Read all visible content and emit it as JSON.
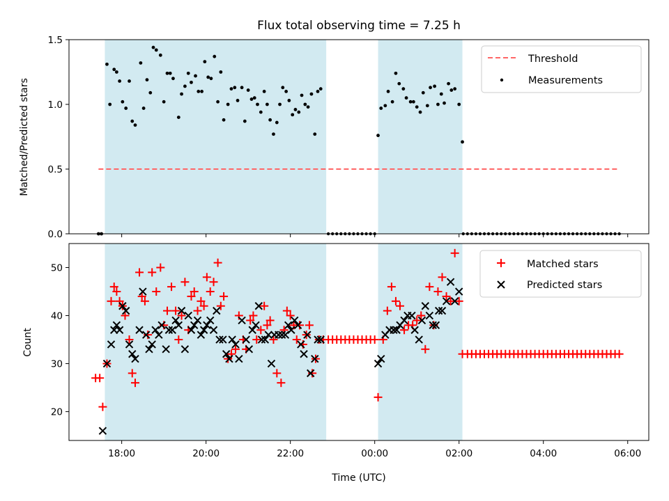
{
  "chart_data": [
    {
      "type": "scatter",
      "title": "Flux total observing time = 7.25 h",
      "ylabel": "Matched/Predicted stars",
      "xlabel": "",
      "ylim": [
        0,
        1.5
      ],
      "yticks": [
        0.0,
        0.5,
        1.0,
        1.5
      ],
      "ytick_labels": [
        "0.0",
        "0.5",
        "1.0",
        "1.5"
      ],
      "xlim_hours": [
        16.75,
        30.5
      ],
      "threshold": {
        "label": "Threshold",
        "value": 0.5,
        "x_start": 17.45,
        "x_end": 29.8,
        "color": "#ff6666"
      },
      "shaded_intervals": [
        [
          17.6,
          22.85
        ],
        [
          24.08,
          26.08
        ]
      ],
      "shade_color": "#add8e6",
      "legend": [
        "Threshold",
        "Measurements"
      ],
      "series": [
        {
          "name": "Measurements",
          "color": "#000000",
          "x": [
            17.45,
            17.52,
            17.65,
            17.72,
            17.82,
            17.88,
            17.95,
            18.02,
            18.1,
            18.18,
            18.25,
            18.32,
            18.45,
            18.52,
            18.6,
            18.68,
            18.75,
            18.82,
            18.92,
            19.0,
            19.08,
            19.15,
            19.22,
            19.35,
            19.42,
            19.5,
            19.58,
            19.65,
            19.75,
            19.82,
            19.9,
            19.97,
            20.05,
            20.12,
            20.2,
            20.28,
            20.35,
            20.42,
            20.52,
            20.6,
            20.68,
            20.75,
            20.85,
            20.92,
            21.0,
            21.08,
            21.15,
            21.22,
            21.3,
            21.38,
            21.45,
            21.52,
            21.6,
            21.68,
            21.75,
            21.82,
            21.9,
            21.97,
            22.05,
            22.12,
            22.2,
            22.27,
            22.35,
            22.42,
            22.5,
            22.58,
            22.65,
            22.72,
            24.08,
            24.15,
            24.25,
            24.32,
            24.42,
            24.5,
            24.58,
            24.68,
            24.75,
            24.85,
            24.92,
            25.0,
            25.08,
            25.15,
            25.25,
            25.32,
            25.42,
            25.5,
            25.58,
            25.65,
            25.75,
            25.82,
            25.9,
            26.0,
            26.08
          ],
          "y": [
            0.0,
            0.0,
            1.31,
            1.0,
            1.27,
            1.25,
            1.18,
            1.02,
            0.97,
            1.18,
            0.87,
            0.84,
            1.32,
            0.97,
            1.19,
            1.09,
            1.44,
            1.42,
            1.38,
            1.02,
            1.24,
            1.24,
            1.2,
            0.9,
            1.08,
            1.14,
            1.24,
            1.17,
            1.22,
            1.1,
            1.1,
            1.33,
            1.21,
            1.2,
            1.37,
            1.02,
            1.25,
            0.88,
            1.0,
            1.12,
            1.13,
            1.03,
            1.13,
            0.87,
            1.11,
            1.04,
            1.05,
            1.0,
            0.94,
            1.1,
            1.0,
            0.88,
            0.77,
            0.86,
            1.0,
            1.13,
            1.1,
            1.03,
            0.92,
            0.96,
            0.94,
            1.07,
            1.0,
            0.98,
            1.08,
            0.77,
            1.1,
            1.12,
            0.76,
            0.97,
            0.99,
            1.1,
            1.02,
            1.24,
            1.16,
            1.12,
            1.05,
            1.02,
            1.02,
            0.98,
            0.94,
            1.09,
            0.99,
            1.13,
            1.14,
            1.0,
            1.08,
            1.01,
            1.16,
            1.11,
            1.12,
            1.0,
            0.71
          ],
          "x_zero": [
            22.9,
            23.0,
            23.1,
            23.2,
            23.3,
            23.4,
            23.5,
            23.6,
            23.7,
            23.8,
            23.9,
            24.0,
            26.1,
            26.2,
            26.3,
            26.4,
            26.5,
            26.6,
            26.7,
            26.8,
            26.9,
            27.0,
            27.1,
            27.2,
            27.3,
            27.4,
            27.5,
            27.6,
            27.7,
            27.8,
            27.9,
            28.0,
            28.1,
            28.2,
            28.3,
            28.4,
            28.5,
            28.6,
            28.7,
            28.8,
            28.9,
            29.0,
            29.1,
            29.2,
            29.3,
            29.4,
            29.5,
            29.6,
            29.7,
            29.8
          ]
        }
      ]
    },
    {
      "type": "scatter",
      "title": "",
      "ylabel": "Count",
      "xlabel": "Time (UTC)",
      "ylim": [
        14,
        55
      ],
      "yticks": [
        20,
        30,
        40,
        50
      ],
      "ytick_labels": [
        "20",
        "30",
        "40",
        "50"
      ],
      "xlim_hours": [
        16.75,
        30.5
      ],
      "xticks_hours": [
        18,
        20,
        22,
        24,
        26,
        28,
        30
      ],
      "xtick_labels": [
        "18:00",
        "20:00",
        "22:00",
        "00:00",
        "02:00",
        "04:00",
        "06:00"
      ],
      "shaded_intervals": [
        [
          17.6,
          22.85
        ],
        [
          24.08,
          26.08
        ]
      ],
      "shade_color": "#add8e6",
      "legend": [
        "Matched stars",
        "Predicted stars"
      ],
      "series": [
        {
          "name": "Matched stars",
          "color": "#ff0000",
          "marker": "+",
          "x": [
            17.38,
            17.48,
            17.55,
            17.65,
            17.75,
            17.82,
            17.88,
            17.95,
            18.02,
            18.08,
            18.18,
            18.25,
            18.32,
            18.42,
            18.48,
            18.55,
            18.62,
            18.72,
            18.82,
            18.92,
            19.0,
            19.08,
            19.18,
            19.28,
            19.35,
            19.42,
            19.5,
            19.58,
            19.65,
            19.72,
            19.8,
            19.88,
            19.95,
            20.02,
            20.1,
            20.18,
            20.28,
            20.35,
            20.42,
            20.52,
            20.6,
            20.7,
            20.78,
            20.88,
            20.95,
            21.05,
            21.12,
            21.2,
            21.3,
            21.38,
            21.45,
            21.52,
            21.6,
            21.68,
            21.78,
            21.85,
            21.92,
            22.0,
            22.08,
            22.15,
            22.22,
            22.3,
            22.38,
            22.45,
            22.52,
            22.6,
            22.68,
            22.78,
            22.9,
            23.0,
            23.1,
            23.2,
            23.3,
            23.4,
            23.5,
            23.6,
            23.7,
            23.8,
            23.9,
            24.0,
            24.08,
            24.2,
            24.3,
            24.4,
            24.5,
            24.6,
            24.7,
            24.8,
            24.9,
            25.0,
            25.1,
            25.2,
            25.3,
            25.4,
            25.5,
            25.6,
            25.7,
            25.8,
            25.9,
            26.0,
            26.08,
            26.2,
            26.3,
            26.4,
            26.5,
            26.6,
            26.7,
            26.8,
            26.9,
            27.0,
            27.1,
            27.2,
            27.3,
            27.4,
            27.5,
            27.6,
            27.7,
            27.8,
            27.9,
            28.0,
            28.1,
            28.2,
            28.3,
            28.4,
            28.5,
            28.6,
            28.7,
            28.8,
            28.9,
            29.0,
            29.1,
            29.2,
            29.3,
            29.4,
            29.5,
            29.6,
            29.7,
            29.8
          ],
          "y": [
            27,
            27,
            21,
            30,
            43,
            46,
            45,
            43,
            42,
            40,
            35,
            28,
            26,
            49,
            44,
            43,
            36,
            49,
            45,
            50,
            38,
            41,
            46,
            41,
            35,
            40,
            47,
            37,
            44,
            45,
            41,
            43,
            42,
            48,
            45,
            47,
            51,
            42,
            44,
            31,
            32,
            33,
            40,
            35,
            33,
            39,
            40,
            35,
            37,
            42,
            38,
            39,
            35,
            28,
            26,
            37,
            41,
            40,
            38,
            35,
            38,
            34,
            36,
            38,
            28,
            31,
            35,
            35,
            35,
            35,
            35,
            35,
            35,
            35,
            35,
            35,
            35,
            35,
            35,
            35,
            23,
            35,
            41,
            46,
            43,
            42,
            37,
            38,
            38,
            39,
            40,
            33,
            46,
            38,
            45,
            48,
            44,
            43,
            53,
            43,
            32,
            32,
            32,
            32,
            32,
            32,
            32,
            32,
            32,
            32,
            32,
            32,
            32,
            32,
            32,
            32,
            32,
            32,
            32,
            32,
            32,
            32,
            32,
            32,
            32,
            32,
            32,
            32,
            32,
            32,
            32,
            32,
            32,
            32,
            32,
            32,
            32,
            32
          ]
        },
        {
          "name": "Predicted stars",
          "color": "#000000",
          "marker": "x",
          "x": [
            17.55,
            17.65,
            17.75,
            17.82,
            17.88,
            17.95,
            18.02,
            18.1,
            18.18,
            18.25,
            18.32,
            18.42,
            18.5,
            18.58,
            18.65,
            18.72,
            18.8,
            18.88,
            18.95,
            19.05,
            19.12,
            19.2,
            19.28,
            19.35,
            19.42,
            19.5,
            19.58,
            19.65,
            19.72,
            19.8,
            19.88,
            19.95,
            20.02,
            20.1,
            20.18,
            20.25,
            20.32,
            20.4,
            20.48,
            20.55,
            20.62,
            20.7,
            20.78,
            20.85,
            20.95,
            21.02,
            21.1,
            21.18,
            21.25,
            21.32,
            21.4,
            21.48,
            21.55,
            21.62,
            21.72,
            21.8,
            21.88,
            21.95,
            22.02,
            22.1,
            22.18,
            22.25,
            22.32,
            22.4,
            22.48,
            22.58,
            22.65,
            22.72,
            24.08,
            24.15,
            24.25,
            24.35,
            24.45,
            24.52,
            24.6,
            24.7,
            24.78,
            24.88,
            24.95,
            25.05,
            25.12,
            25.2,
            25.3,
            25.38,
            25.45,
            25.52,
            25.6,
            25.7,
            25.8,
            25.9,
            26.0
          ],
          "y": [
            16,
            30,
            34,
            37,
            38,
            37,
            42,
            41,
            34,
            32,
            31,
            37,
            45,
            36,
            33,
            34,
            37,
            36,
            38,
            33,
            37,
            37,
            39,
            38,
            41,
            33,
            40,
            37,
            38,
            39,
            36,
            37,
            38,
            39,
            37,
            41,
            35,
            35,
            32,
            31,
            35,
            34,
            31,
            39,
            35,
            33,
            37,
            38,
            42,
            35,
            35,
            36,
            30,
            36,
            36,
            36,
            36,
            38,
            37,
            39,
            38,
            34,
            32,
            36,
            28,
            31,
            35,
            35,
            30,
            31,
            36,
            37,
            37,
            37,
            38,
            39,
            40,
            40,
            37,
            35,
            39,
            42,
            40,
            38,
            38,
            41,
            41,
            43,
            47,
            43,
            45
          ]
        }
      ]
    }
  ]
}
